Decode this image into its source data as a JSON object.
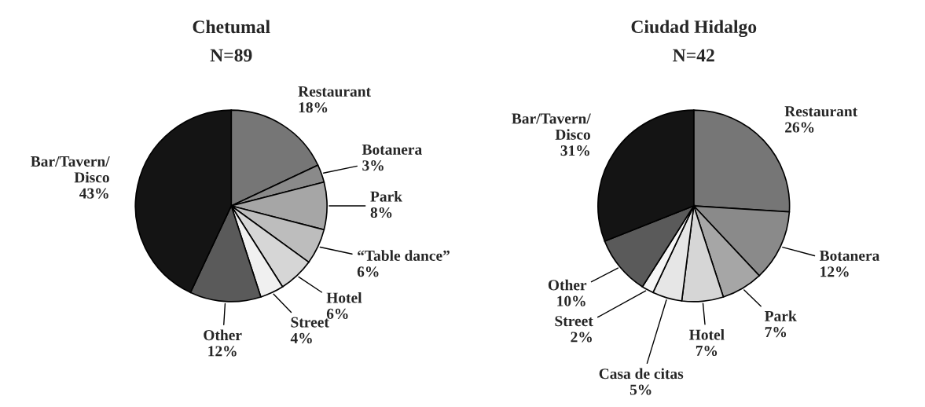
{
  "chart_data": [
    {
      "type": "pie",
      "title": "Chetumal",
      "subtitle": "N=89",
      "categories": [
        "Restaurant",
        "Botanera",
        "Park",
        "“Table dance”",
        "Hotel",
        "Street",
        "Other",
        "Bar/Tavern/\nDisco"
      ],
      "values": [
        18,
        3,
        8,
        6,
        6,
        4,
        12,
        43
      ],
      "value_labels": [
        "18%",
        "3%",
        "8%",
        "6%",
        "6%",
        "4%",
        "12%",
        "43%"
      ],
      "colors": [
        "#767676",
        "#8a8a8a",
        "#a6a6a6",
        "#bdbdbd",
        "#d6d6d6",
        "#f0f0f0",
        "#5a5a5a",
        "#141414"
      ]
    },
    {
      "type": "pie",
      "title": "Ciudad Hidalgo",
      "subtitle": "N=42",
      "categories": [
        "Restaurant",
        "Botanera",
        "Park",
        "Hotel",
        "Casa de citas",
        "Street",
        "Other",
        "Bar/Tavern/\nDisco"
      ],
      "values": [
        26,
        12,
        7,
        7,
        5,
        2,
        10,
        31
      ],
      "value_labels": [
        "26%",
        "12%",
        "7%",
        "7%",
        "5%",
        "2%",
        "10%",
        "31%"
      ],
      "colors": [
        "#767676",
        "#8a8a8a",
        "#a6a6a6",
        "#d6d6d6",
        "#e6e6e6",
        "#f5f5f5",
        "#5a5a5a",
        "#141414"
      ]
    }
  ]
}
